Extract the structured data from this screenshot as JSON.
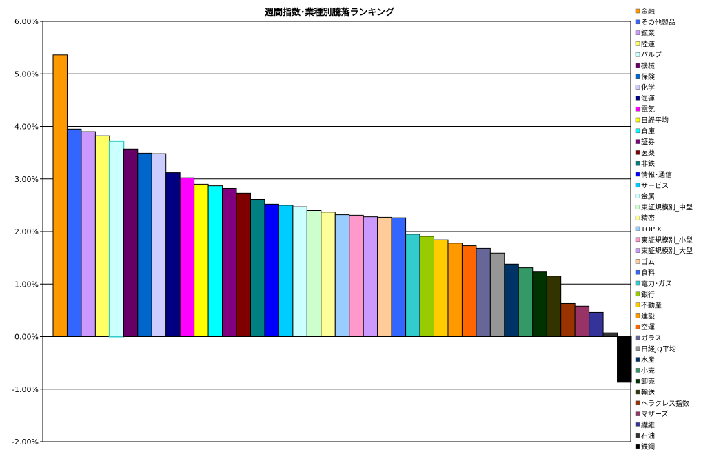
{
  "chart_data": {
    "type": "bar",
    "title": "週間指数･業種別騰落ランキング",
    "xlabel": "",
    "ylabel": "",
    "ylim": [
      -0.02,
      0.06
    ],
    "yticks": [
      0.06,
      0.05,
      0.04,
      0.03,
      0.02,
      0.01,
      0.0,
      -0.01,
      -0.02
    ],
    "ytick_labels": [
      "6.00%",
      "5.00%",
      "4.00%",
      "3.00%",
      "2.00%",
      "1.00%",
      "0.00%",
      "-1.00%",
      "-2.00%"
    ],
    "grid": true,
    "legend_position": "right",
    "categories": [
      "金融",
      "その他製品",
      "鉱業",
      "陸運",
      "パルプ",
      "機械",
      "保険",
      "化学",
      "海運",
      "電気",
      "日経平均",
      "倉庫",
      "証券",
      "医薬",
      "非鉄",
      "情報･通信",
      "サービス",
      "金属",
      "東証規模別_中型",
      "精密",
      "TOPIX",
      "東証規模別_小型",
      "東証規模別_大型",
      "ゴム",
      "食料",
      "電力･ガス",
      "銀行",
      "不動産",
      "建設",
      "空運",
      "ガラス",
      "日経JQ平均",
      "水産",
      "小売",
      "卸売",
      "輸送",
      "ヘラクレス指数",
      "マザーズ",
      "繊維",
      "石油",
      "鉄鋼"
    ],
    "values": [
      0.0536,
      0.0395,
      0.039,
      0.0382,
      0.0372,
      0.0357,
      0.0349,
      0.0348,
      0.0312,
      0.0302,
      0.029,
      0.0287,
      0.0282,
      0.0273,
      0.0261,
      0.0252,
      0.025,
      0.0247,
      0.024,
      0.0237,
      0.0232,
      0.0231,
      0.0228,
      0.0227,
      0.0226,
      0.0195,
      0.0191,
      0.0184,
      0.0178,
      0.0173,
      0.0168,
      0.0159,
      0.0138,
      0.0131,
      0.0123,
      0.0115,
      0.0063,
      0.0058,
      0.0046,
      0.0007,
      -0.0087
    ],
    "colors": [
      "#FF9900",
      "#3366FF",
      "#CC99FF",
      "#FFFF66",
      "#CCFFFF",
      "#660066",
      "#0066CC",
      "#CCCCFF",
      "#000080",
      "#FF00FF",
      "#FFFF00",
      "#00FFFF",
      "#800080",
      "#800000",
      "#008080",
      "#0000FF",
      "#00CCFF",
      "#CCFFFF",
      "#CCFFCC",
      "#FFFF99",
      "#99CCFF",
      "#FF99CC",
      "#CC99FF",
      "#FFCC99",
      "#3366FF",
      "#33CCCC",
      "#99CC00",
      "#FFCC00",
      "#FF9900",
      "#FF6600",
      "#666699",
      "#969696",
      "#003366",
      "#339966",
      "#003300",
      "#333300",
      "#993300",
      "#993366",
      "#333399",
      "#333333",
      "#000000"
    ]
  }
}
